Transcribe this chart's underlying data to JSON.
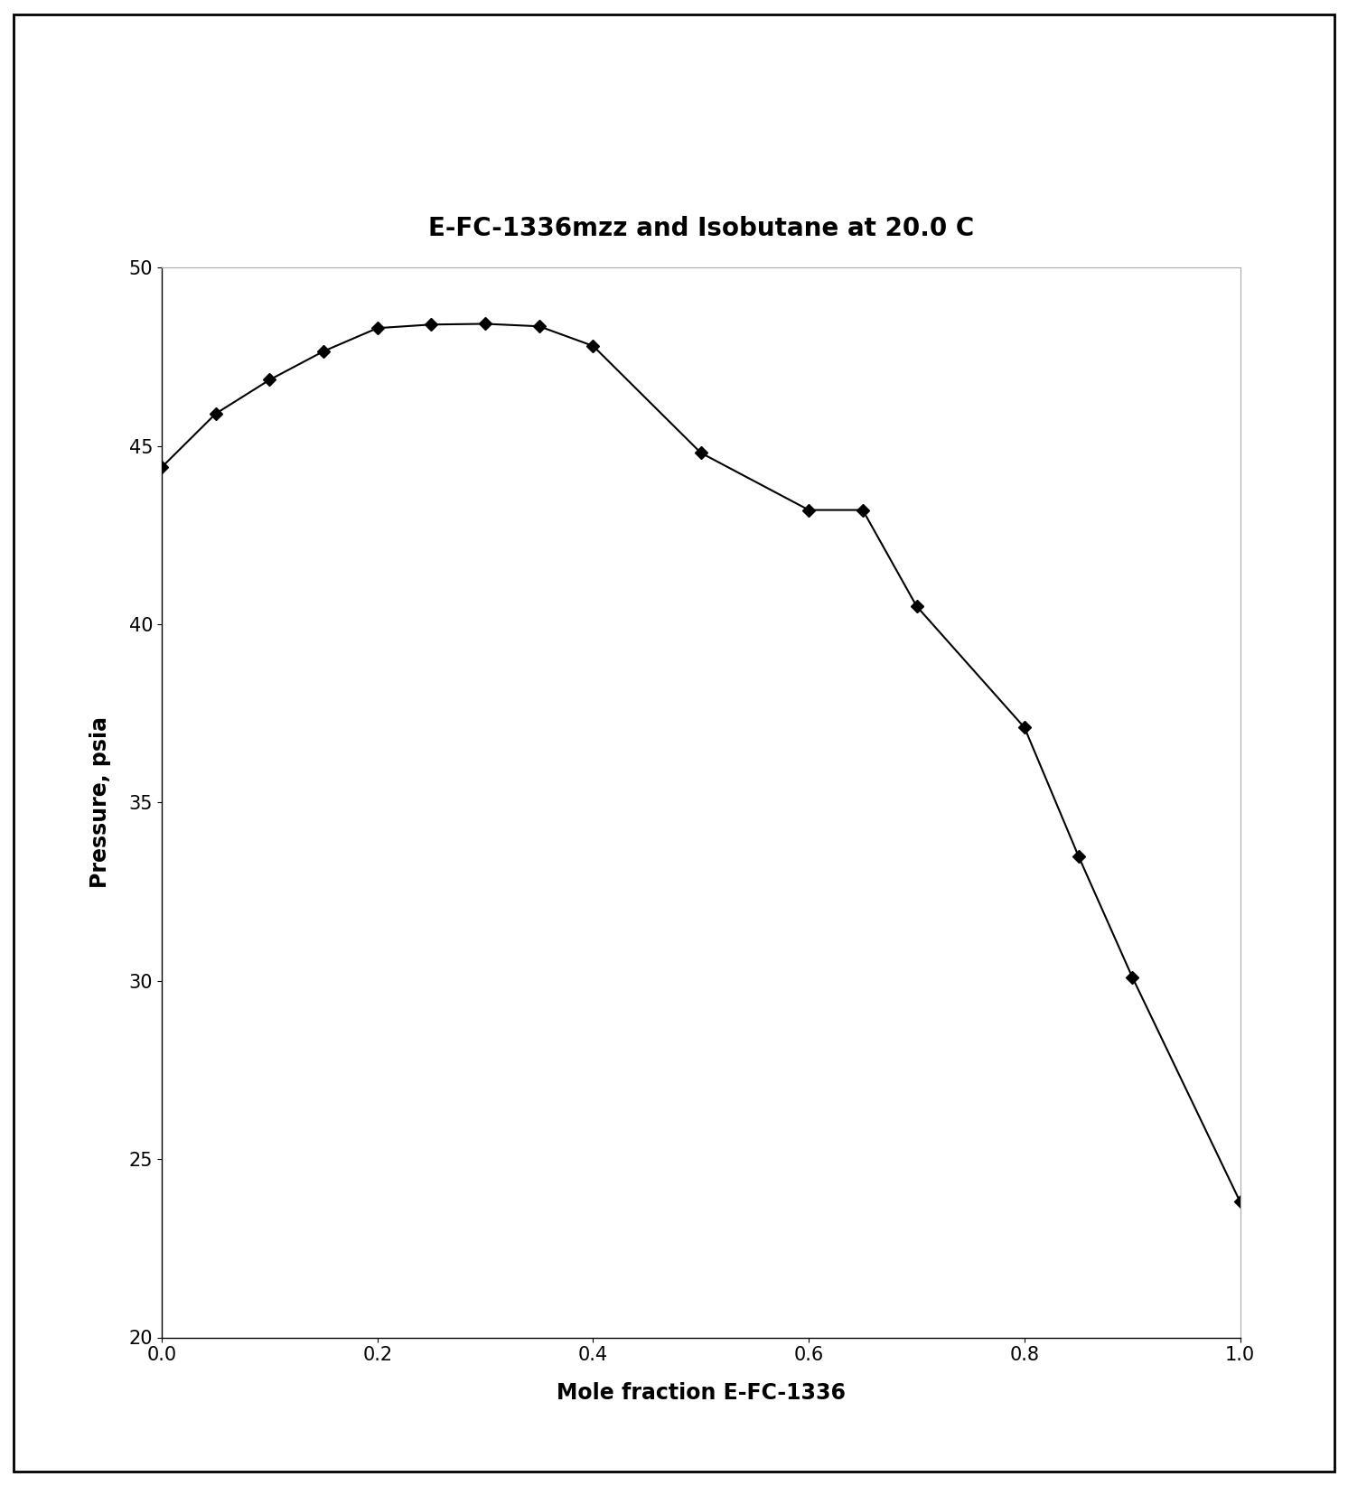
{
  "title": "E-FC-1336mzz and Isobutane at 20.0 C",
  "xlabel": "Mole fraction E-FC-1336",
  "ylabel": "Pressure, psia",
  "xlim": [
    0,
    1
  ],
  "ylim": [
    20,
    50
  ],
  "yticks": [
    20,
    25,
    30,
    35,
    40,
    45,
    50
  ],
  "xticks": [
    0,
    0.2,
    0.4,
    0.6,
    0.8,
    1
  ],
  "x": [
    0.0,
    0.05,
    0.1,
    0.15,
    0.2,
    0.25,
    0.3,
    0.35,
    0.4,
    0.5,
    0.6,
    0.65,
    0.7,
    0.8,
    0.85,
    0.9,
    1.0
  ],
  "y": [
    44.4,
    45.9,
    46.85,
    47.65,
    48.3,
    48.4,
    48.42,
    48.35,
    47.8,
    44.8,
    43.2,
    43.2,
    40.5,
    37.1,
    33.5,
    30.1,
    23.8
  ],
  "line_color": "#000000",
  "marker": "D",
  "marker_size": 7,
  "marker_face_color": "#000000",
  "marker_edge_color": "#000000",
  "line_width": 1.5,
  "title_fontsize": 20,
  "label_fontsize": 17,
  "tick_fontsize": 15,
  "background_color": "#ffffff",
  "outer_border_color": "#000000",
  "spine_gray": "#aaaaaa"
}
